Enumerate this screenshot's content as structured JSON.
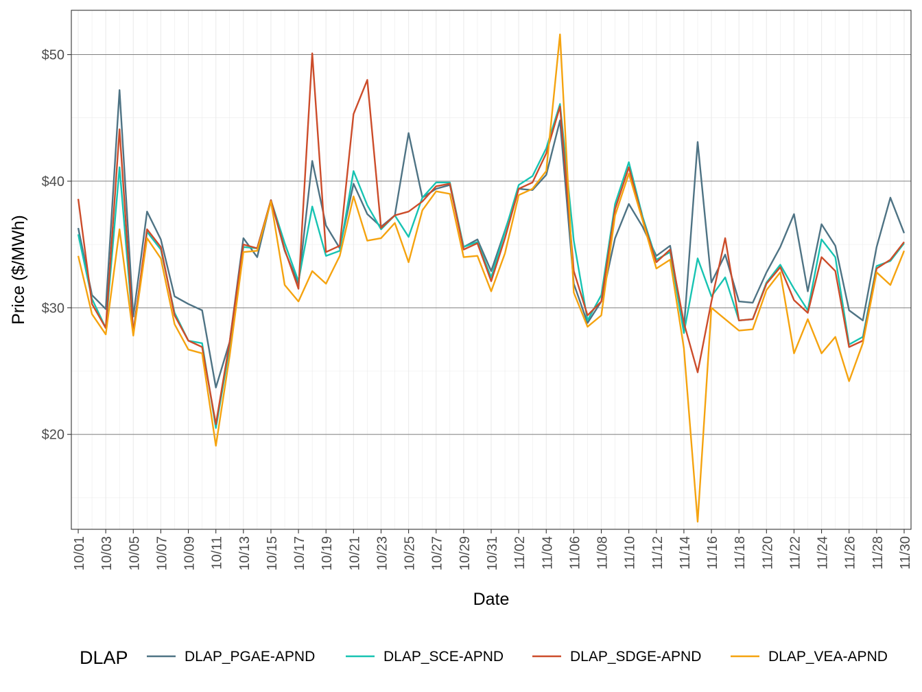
{
  "chart_data": {
    "type": "line",
    "xlabel": "Date",
    "ylabel": "Price ($/MWh)",
    "x": [
      "10/01",
      "10/02",
      "10/03",
      "10/04",
      "10/05",
      "10/06",
      "10/07",
      "10/08",
      "10/09",
      "10/10",
      "10/11",
      "10/12",
      "10/13",
      "10/14",
      "10/15",
      "10/16",
      "10/17",
      "10/18",
      "10/19",
      "10/20",
      "10/21",
      "10/22",
      "10/23",
      "10/24",
      "10/25",
      "10/26",
      "10/27",
      "10/28",
      "10/29",
      "10/30",
      "10/31",
      "11/01",
      "11/02",
      "11/03",
      "11/04",
      "11/05",
      "11/06",
      "11/07",
      "11/08",
      "11/09",
      "11/10",
      "11/11",
      "11/12",
      "11/13",
      "11/14",
      "11/15",
      "11/16",
      "11/17",
      "11/18",
      "11/19",
      "11/20",
      "11/21",
      "11/22",
      "11/23",
      "11/24",
      "11/25",
      "11/26",
      "11/27",
      "11/28",
      "11/29",
      "11/30"
    ],
    "x_tick_labels": [
      "10/01",
      "10/03",
      "10/05",
      "10/07",
      "10/09",
      "10/11",
      "10/13",
      "10/15",
      "10/17",
      "10/19",
      "10/21",
      "10/23",
      "10/25",
      "10/27",
      "10/29",
      "10/31",
      "11/02",
      "11/04",
      "11/06",
      "11/08",
      "11/10",
      "11/12",
      "11/14",
      "11/16",
      "11/18",
      "11/20",
      "11/22",
      "11/24",
      "11/26",
      "11/28",
      "11/30"
    ],
    "y_ticks": [
      20,
      30,
      40,
      50
    ],
    "y_tick_labels": [
      "$20",
      "$30",
      "$40",
      "$50"
    ],
    "ylim": [
      12.5,
      53.5
    ],
    "grid": true,
    "legend": {
      "title": "DLAP",
      "position": "bottom"
    },
    "series": [
      {
        "name": "DLAP_PGAE-APND",
        "color": "#4e7384",
        "values": [
          36.3,
          31.0,
          29.9,
          47.2,
          29.3,
          37.6,
          35.4,
          30.9,
          30.3,
          29.8,
          23.7,
          27.3,
          35.5,
          34.0,
          38.5,
          34.5,
          31.9,
          41.6,
          36.5,
          34.7,
          39.8,
          37.4,
          36.4,
          37.3,
          43.8,
          38.7,
          39.4,
          39.7,
          34.8,
          35.4,
          32.9,
          36.1,
          39.4,
          39.3,
          40.5,
          44.8,
          31.9,
          28.8,
          30.5,
          35.5,
          38.2,
          36.4,
          34.1,
          34.9,
          28.3,
          43.1,
          32.0,
          34.2,
          30.5,
          30.4,
          32.8,
          34.8,
          37.4,
          31.3,
          36.6,
          34.9,
          29.8,
          29.0,
          34.8,
          38.7,
          35.9
        ]
      },
      {
        "name": "DLAP_SCE-APND",
        "color": "#17c3b2",
        "values": [
          35.8,
          30.7,
          28.4,
          41.1,
          28.1,
          36.0,
          34.6,
          29.6,
          27.4,
          27.2,
          20.5,
          26.9,
          34.8,
          34.7,
          38.5,
          35.1,
          32.1,
          38.0,
          34.1,
          34.5,
          40.8,
          38.1,
          36.2,
          37.3,
          35.6,
          38.7,
          39.9,
          39.9,
          34.8,
          35.2,
          32.4,
          36.0,
          39.7,
          40.4,
          42.6,
          46.1,
          35.3,
          29.0,
          31.0,
          38.2,
          41.5,
          37.2,
          33.8,
          34.4,
          28.0,
          33.9,
          30.9,
          32.4,
          29.0,
          29.1,
          32.0,
          33.4,
          31.5,
          29.8,
          35.4,
          34.0,
          27.1,
          27.7,
          33.3,
          33.7,
          35.1
        ]
      },
      {
        "name": "DLAP_SDGE-APND",
        "color": "#cc4c2a",
        "values": [
          38.6,
          30.3,
          28.4,
          44.1,
          28.0,
          36.2,
          34.8,
          29.4,
          27.4,
          26.9,
          20.8,
          27.3,
          35.0,
          34.7,
          38.5,
          34.6,
          31.5,
          50.1,
          34.4,
          34.9,
          45.3,
          48.0,
          36.3,
          37.3,
          37.6,
          38.4,
          39.6,
          39.8,
          34.6,
          35.1,
          32.1,
          35.5,
          39.4,
          39.9,
          42.2,
          45.9,
          32.9,
          29.4,
          30.5,
          37.8,
          41.1,
          37.0,
          33.6,
          34.6,
          28.8,
          24.9,
          30.5,
          35.5,
          29.0,
          29.1,
          31.9,
          33.2,
          30.6,
          29.6,
          34.0,
          32.9,
          26.9,
          27.4,
          33.1,
          33.8,
          35.2
        ]
      },
      {
        "name": "DLAP_VEA-APND",
        "color": "#f5a30f",
        "values": [
          34.1,
          29.5,
          27.9,
          36.2,
          27.8,
          35.5,
          33.9,
          28.7,
          26.7,
          26.4,
          19.1,
          26.2,
          34.4,
          34.5,
          38.4,
          31.8,
          30.5,
          32.9,
          31.9,
          34.1,
          38.8,
          35.3,
          35.5,
          36.7,
          33.6,
          37.7,
          39.2,
          39.0,
          34.0,
          34.1,
          31.3,
          34.3,
          38.9,
          39.4,
          40.8,
          51.6,
          31.2,
          28.5,
          29.4,
          37.3,
          40.6,
          36.9,
          33.1,
          33.8,
          26.8,
          13.1,
          30.0,
          29.1,
          28.2,
          28.3,
          31.4,
          32.8,
          26.4,
          29.1,
          26.4,
          27.7,
          24.2,
          27.2,
          32.8,
          31.8,
          34.5
        ]
      }
    ]
  }
}
